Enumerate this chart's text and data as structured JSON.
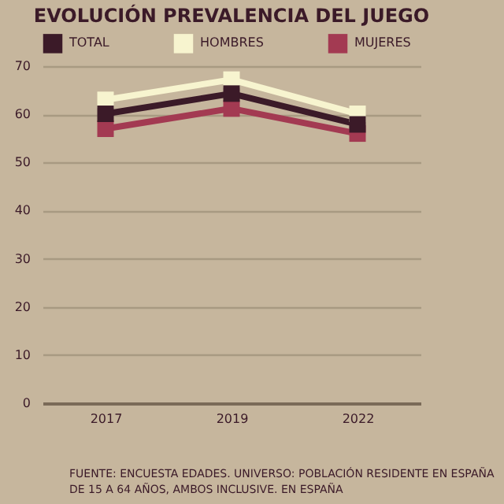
{
  "chart_data": {
    "type": "line",
    "title": "EVOLUCIÓN PREVALENCIA DEL JUEGO",
    "categories": [
      "2017",
      "2019",
      "2022"
    ],
    "series": [
      {
        "name": "TOTAL",
        "color": "#3b1a28",
        "values": [
          60.1,
          64.3,
          57.9
        ]
      },
      {
        "name": "HOMBRES",
        "color": "#f7f4cf",
        "values": [
          63.0,
          67.2,
          60.1
        ]
      },
      {
        "name": "MUJERES",
        "color": "#a33a52",
        "values": [
          57.0,
          61.2,
          56.0
        ]
      }
    ],
    "ylim": [
      0,
      70
    ],
    "yticks": [
      0,
      10,
      20,
      30,
      40,
      50,
      60,
      70
    ],
    "grid": "y",
    "legend": "top",
    "marker": "square",
    "line_style": "solid",
    "annotations": [
      "FUENTE: ENCUESTA EDADES. UNIVERSO: POBLACIÓN RESIDENTE EN ESPAÑA DE 15 A 64 AÑOS, AMBOS INCLUSIVE. EN ESPAÑA"
    ]
  }
}
